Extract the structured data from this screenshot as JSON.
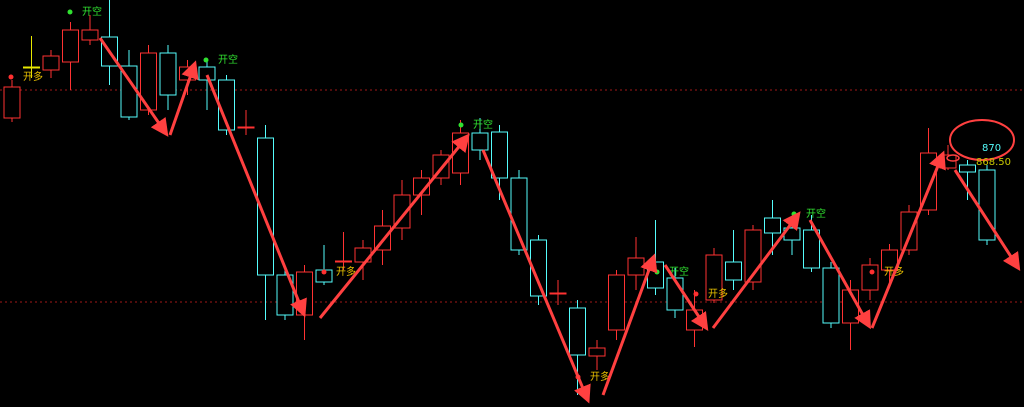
{
  "chart_data": {
    "type": "candlestick",
    "ylim": [
      845.3,
      886
    ],
    "up_color": "#ff3232",
    "down_color": "#54fcfc",
    "doji_color": "#e8e800",
    "series": {
      "open": [
        874.2,
        879.3,
        879,
        879.8,
        882,
        882.3,
        879.4,
        875,
        880.7,
        878,
        879.3,
        878,
        873.2,
        872.2,
        858.5,
        854.5,
        859,
        859.8,
        859.8,
        861,
        863.2,
        866.5,
        868.2,
        868.7,
        872.7,
        872.8,
        868.2,
        862,
        856.6,
        855.2,
        850.4,
        853,
        858.5,
        859.8,
        858.2,
        853,
        856,
        859.8,
        857.8,
        864.2,
        863.2,
        863,
        859.2,
        853.7,
        857,
        859,
        861,
        865,
        869.2,
        869.5,
        869
      ],
      "high": [
        878,
        882.4,
        881,
        883.8,
        884.5,
        886,
        881,
        881.5,
        881.5,
        880,
        880,
        878.5,
        875,
        873.5,
        859,
        859.5,
        861.5,
        862.8,
        862,
        865,
        868,
        869,
        871,
        874,
        874.2,
        873.5,
        869,
        862.5,
        858,
        856,
        852,
        859,
        862.3,
        864,
        859.2,
        857,
        861.2,
        863,
        863.5,
        866,
        864,
        864.5,
        859.8,
        858,
        860.2,
        861.6,
        865.5,
        873.2,
        871.5,
        870,
        869.5
      ],
      "low": [
        873.8,
        878.2,
        878.2,
        877,
        881.5,
        877.5,
        874,
        874.5,
        875,
        876.5,
        875,
        872.5,
        872.5,
        854,
        854,
        852,
        857.5,
        859,
        858,
        859.5,
        862,
        864.5,
        867.5,
        867.5,
        870,
        866,
        860.5,
        855.5,
        855.5,
        846.5,
        849,
        852,
        857,
        856.5,
        854.2,
        851.3,
        855.7,
        857,
        857,
        860.5,
        860.5,
        858.8,
        853.2,
        851,
        856,
        857.5,
        860.5,
        864.5,
        869,
        866,
        861.5
      ],
      "close": [
        877.3,
        879.3,
        880.4,
        883,
        883,
        879.4,
        874.3,
        880.7,
        876.5,
        879.3,
        878,
        873,
        873.3,
        858.5,
        854.5,
        858.8,
        857.8,
        859.9,
        861.2,
        863.4,
        866.5,
        868.2,
        870.5,
        872.7,
        871,
        868.2,
        861,
        856.4,
        856.7,
        850.5,
        851.2,
        858.5,
        860.2,
        857.2,
        855,
        855,
        860.5,
        858,
        863,
        862.7,
        862,
        859.2,
        853.7,
        857,
        859.5,
        861,
        864.8,
        870.7,
        870.5,
        868.8,
        862
      ]
    },
    "annotations": [
      "开多",
      "开空",
      "开空",
      "开多",
      "开空",
      "开多",
      "开空",
      "开多",
      "开空",
      "开多"
    ],
    "price_labels": [
      870,
      {
        "value": 868.5,
        "label": "868.50"
      }
    ]
  }
}
